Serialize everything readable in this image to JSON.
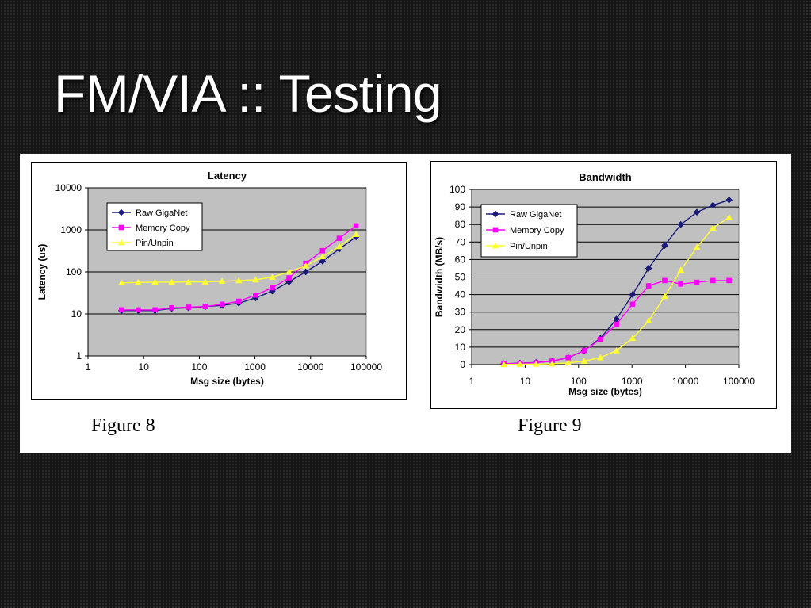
{
  "slide": {
    "title": "FM/VIA :: Testing"
  },
  "captions": [
    "Figure 8",
    "Figure 9"
  ],
  "chart_data": [
    {
      "type": "line",
      "title": "Latency",
      "xlabel": "Msg size (bytes)",
      "ylabel": "Latency (us)",
      "xscale": "log",
      "yscale": "log",
      "xlim": [
        1,
        100000
      ],
      "ylim": [
        1,
        10000
      ],
      "x_ticks": [
        "1",
        "10",
        "100",
        "1000",
        "10000",
        "100000"
      ],
      "y_ticks": [
        "1",
        "10",
        "100",
        "1000",
        "10000"
      ],
      "grid": true,
      "legend": "top-left",
      "plot_bg": "#c0c0c0",
      "x": [
        4,
        8,
        16,
        32,
        64,
        128,
        256,
        512,
        1024,
        2048,
        4096,
        8192,
        16384,
        32768,
        65536
      ],
      "series": [
        {
          "name": "Raw GigaNet",
          "color": "#1a1a7a",
          "marker": "diamond",
          "values": [
            12,
            12,
            12,
            13.5,
            14,
            15,
            16,
            18,
            24,
            35,
            58,
            100,
            180,
            350,
            680
          ]
        },
        {
          "name": "Memory Copy",
          "color": "#ff00ff",
          "marker": "square",
          "values": [
            12.5,
            12.5,
            12.5,
            14,
            14.5,
            15,
            17,
            20,
            28,
            42,
            72,
            160,
            320,
            630,
            1250
          ]
        },
        {
          "name": "Pin/Unpin",
          "color": "#ffff33",
          "marker": "triangle",
          "values": [
            55,
            56,
            57,
            57,
            58,
            58,
            60,
            62,
            65,
            75,
            100,
            140,
            230,
            400,
            780
          ]
        }
      ]
    },
    {
      "type": "line",
      "title": "Bandwidth",
      "xlabel": "Msg size (bytes)",
      "ylabel": "Bandwidth (MB/s)",
      "xscale": "log",
      "xlim": [
        1,
        100000
      ],
      "ylim": [
        0,
        100
      ],
      "x_ticks": [
        "1",
        "10",
        "100",
        "1000",
        "10000",
        "100000"
      ],
      "y_ticks": [
        "0",
        "10",
        "20",
        "30",
        "40",
        "50",
        "60",
        "70",
        "80",
        "90",
        "100"
      ],
      "grid": true,
      "legend": "top-left",
      "plot_bg": "#c0c0c0",
      "x": [
        4,
        8,
        16,
        32,
        64,
        128,
        256,
        512,
        1024,
        2048,
        4096,
        8192,
        16384,
        32768,
        65536
      ],
      "series": [
        {
          "name": "Raw GigaNet",
          "color": "#1a1a7a",
          "marker": "diamond",
          "values": [
            0.5,
            0.8,
            1.2,
            2,
            4,
            8,
            15,
            26,
            40,
            55,
            68,
            80,
            87,
            91,
            94
          ]
        },
        {
          "name": "Memory Copy",
          "color": "#ff00ff",
          "marker": "square",
          "values": [
            0.5,
            0.7,
            1.1,
            2,
            4,
            8,
            14.5,
            23,
            34.5,
            45,
            48,
            46,
            47,
            48,
            48
          ]
        },
        {
          "name": "Pin/Unpin",
          "color": "#ffff33",
          "marker": "triangle",
          "values": [
            0.1,
            0.2,
            0.3,
            0.5,
            1,
            2,
            4,
            8,
            15,
            25,
            39,
            54,
            67,
            78,
            84
          ]
        }
      ]
    }
  ]
}
